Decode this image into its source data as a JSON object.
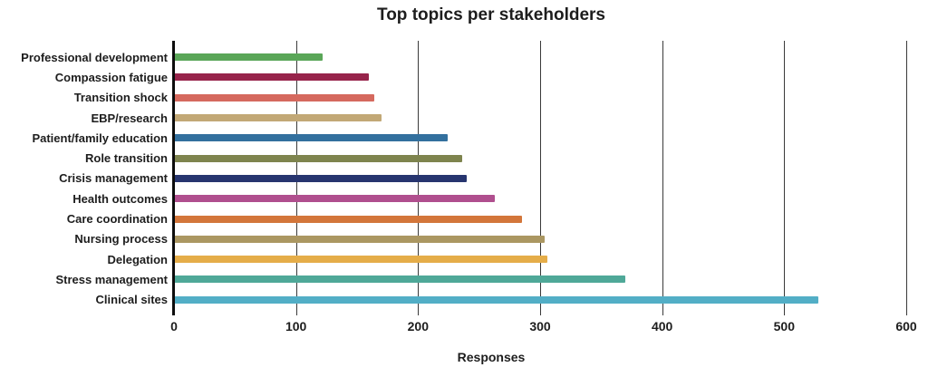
{
  "chart_data": {
    "type": "bar",
    "orientation": "horizontal",
    "title": "Top topics per stakeholders",
    "xlabel": "Responses",
    "ylabel": "",
    "xlim": [
      0,
      600
    ],
    "xticks": [
      0,
      100,
      200,
      300,
      400,
      500,
      600
    ],
    "grid": "vertical-gridlines-on",
    "legend": "none",
    "categories": [
      "Professional development",
      "Compassion fatigue",
      "Transition shock",
      "EBP/research",
      "Patient/family education",
      "Role transition",
      "Crisis management",
      "Health outcomes",
      "Care coordination",
      "Nursing process",
      "Delegation",
      "Stress management",
      "Clinical sites"
    ],
    "values": [
      122,
      160,
      164,
      170,
      224,
      236,
      240,
      263,
      285,
      304,
      306,
      370,
      528
    ],
    "bar_colors": [
      "#5aa658",
      "#97244b",
      "#d5695e",
      "#c2a876",
      "#33709e",
      "#7e844e",
      "#27356f",
      "#b04f8e",
      "#d3763a",
      "#ab9762",
      "#e5ad49",
      "#4fa898",
      "#52aec6"
    ]
  },
  "colors": {
    "background": "#ffffff",
    "text": "#1d1d1d",
    "gridline": "#3a3a3a",
    "axis_spine": "#0d0d0d"
  }
}
